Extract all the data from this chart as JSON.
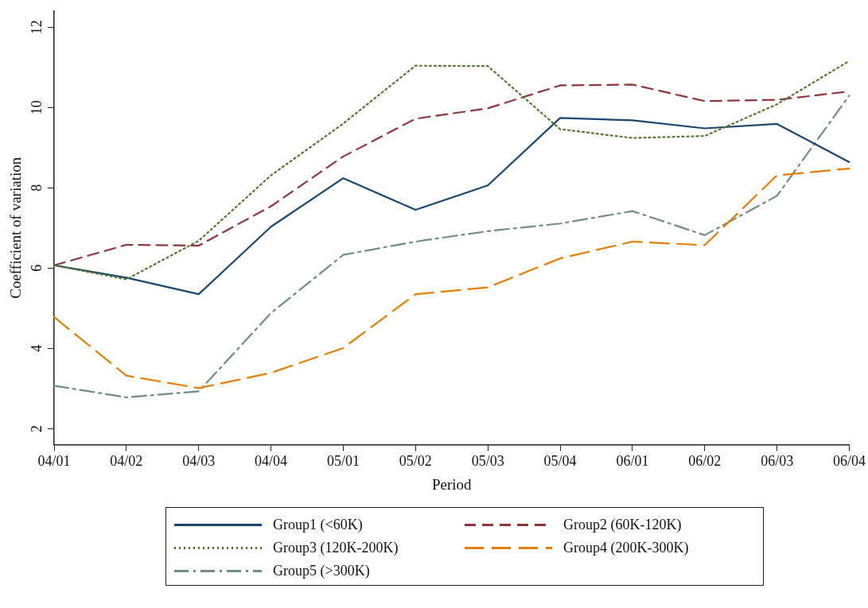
{
  "chart_data": {
    "type": "line",
    "xlabel": "Period",
    "ylabel": "Coefficient of variation",
    "categories": [
      "04/01",
      "04/02",
      "04/03",
      "04/04",
      "05/01",
      "05/02",
      "05/03",
      "05/04",
      "06/01",
      "06/02",
      "06/03",
      "06/04"
    ],
    "series": [
      {
        "name": "Group1 (<60K)",
        "color": "#1a476f",
        "line_style": "solid",
        "values": [
          6.07,
          5.76,
          5.35,
          7.03,
          8.24,
          7.45,
          8.06,
          9.74,
          9.68,
          9.48,
          9.59,
          8.64
        ]
      },
      {
        "name": "Group2 (60K-120K)",
        "color": "#90353b",
        "line_style": "dashed",
        "values": [
          6.07,
          6.58,
          6.56,
          7.54,
          8.78,
          9.72,
          9.98,
          10.55,
          10.57,
          10.16,
          10.19,
          10.4
        ]
      },
      {
        "name": "Group3 (120K-200K)",
        "color": "#55752f",
        "line_style": "dotted",
        "values": [
          6.07,
          5.72,
          6.68,
          8.31,
          9.6,
          11.04,
          11.03,
          9.46,
          9.24,
          9.29,
          10.08,
          11.16
        ]
      },
      {
        "name": "Group4 (200K-300K)",
        "color": "#e37e00",
        "line_style": "longdash",
        "values": [
          4.78,
          3.32,
          3.01,
          3.39,
          4.01,
          5.35,
          5.52,
          6.24,
          6.66,
          6.57,
          8.31,
          8.48
        ]
      },
      {
        "name": "Group5 (>300K)",
        "color": "#6e8e84",
        "line_style": "dashdot",
        "values": [
          3.07,
          2.78,
          2.93,
          4.88,
          6.33,
          6.66,
          6.92,
          7.11,
          7.42,
          6.82,
          7.8,
          10.3
        ]
      }
    ],
    "ylim": [
      1.6,
      12.4
    ],
    "yticks": [
      2,
      4,
      6,
      8,
      10,
      12
    ],
    "grid": false,
    "legend": "bottom",
    "marker": "none"
  }
}
